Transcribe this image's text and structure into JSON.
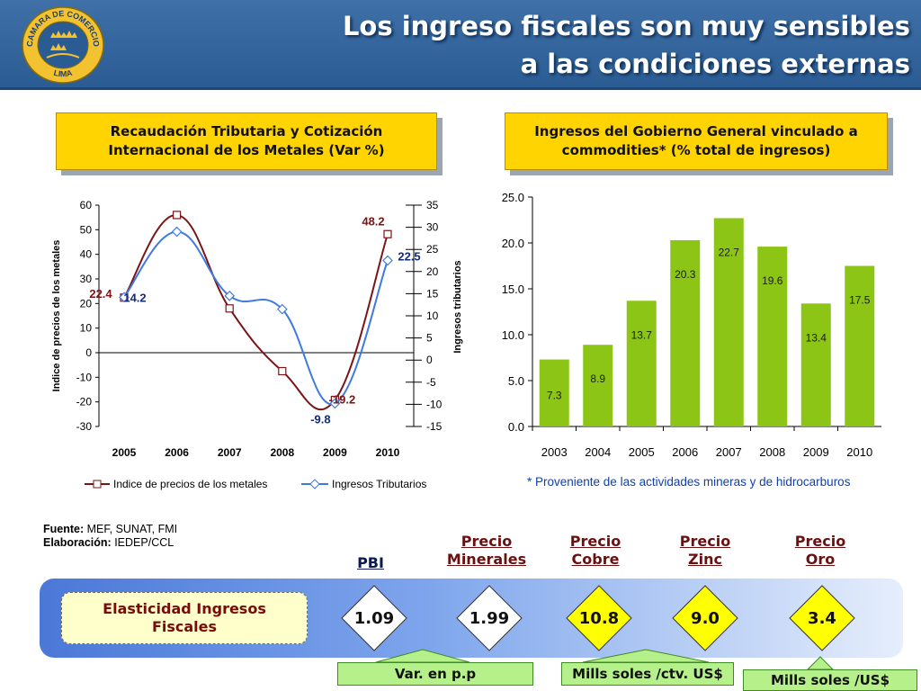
{
  "header": {
    "title_line1": "Los ingreso fiscales son muy sensibles",
    "title_line2": "a las condiciones externas",
    "logo": {
      "text_top": "CAMARA DE COMERCIO",
      "text_bottom": "LIMA",
      "icon": "three-crowns-seal-icon"
    }
  },
  "left_panel": {
    "title_line1": "Recaudación Tributaria y Cotización",
    "title_line2": "Internacional de los Metales (Var %)"
  },
  "right_panel": {
    "title_line1": "Ingresos del Gobierno General vinculado a",
    "title_line2": "commodities* (% total de ingresos)"
  },
  "chart_data": [
    {
      "type": "line",
      "x": [
        "2005",
        "2006",
        "2007",
        "2008",
        "2009",
        "2010"
      ],
      "series": [
        {
          "name": "Indice de precios de los metales",
          "axis": "left",
          "color": "#7b1515",
          "values": [
            22.4,
            56,
            18,
            -7.5,
            -19.2,
            48.2
          ]
        },
        {
          "name": "Ingresos Tributarios",
          "axis": "right",
          "color": "#3d7be0",
          "values": [
            14.2,
            29,
            14.5,
            11.5,
            -9.8,
            22.5
          ]
        }
      ],
      "ylabel": "Indice de precios de los metales",
      "y2label": "Ingresos tributarios",
      "ylim": [
        -30,
        60
      ],
      "yticks": [
        -30,
        -20,
        -10,
        0,
        10,
        20,
        30,
        40,
        50,
        60
      ],
      "y2lim": [
        -15,
        35
      ],
      "y2ticks": [
        -15,
        -10,
        -5,
        0,
        5,
        10,
        15,
        20,
        25,
        30,
        35
      ],
      "annotations": [
        {
          "text": "22.4",
          "series": 0,
          "index": 0
        },
        {
          "text": "48.2",
          "series": 0,
          "index": 5
        },
        {
          "text": "-19.2",
          "series": 0,
          "index": 4
        },
        {
          "text": "14.2",
          "series": 1,
          "index": 0
        },
        {
          "text": "22.5",
          "series": 1,
          "index": 5
        },
        {
          "text": "-9.8",
          "series": 1,
          "index": 4
        }
      ],
      "legend": "bottom",
      "grid": false
    },
    {
      "type": "bar",
      "categories": [
        "2003",
        "2004",
        "2005",
        "2006",
        "2007",
        "2008",
        "2009",
        "2010"
      ],
      "values": [
        7.3,
        8.9,
        13.7,
        20.3,
        22.7,
        19.6,
        13.4,
        17.5
      ],
      "labels": [
        "7.3",
        "8.9",
        "13.7",
        "20.3",
        "22.7",
        "19.6",
        "13.4",
        "17.5"
      ],
      "ylim": [
        0,
        25
      ],
      "yticks": [
        "0.0",
        "5.0",
        "10.0",
        "15.0",
        "20.0",
        "25.0"
      ],
      "color": "#8cc516",
      "grid": false
    }
  ],
  "note": "* Proveniente de las actividades mineras y de hidrocarburos",
  "source": {
    "fuente_label": "Fuente:",
    "fuente_value": "MEF, SUNAT, FMI",
    "elab_label": "Elaboración:",
    "elab_value": "IEDEP/CCL"
  },
  "elasticity": {
    "label": "Elasticidad Ingresos Fiscales",
    "columns": [
      {
        "head": "PBI",
        "value": "1.09",
        "color": "#ffffff"
      },
      {
        "head": "Precio Minerales",
        "value": "1.99",
        "color": "#ffffff"
      },
      {
        "head": "Precio Cobre",
        "value": "10.8",
        "color": "#ffff00"
      },
      {
        "head": "Precio Zinc",
        "value": "9.0",
        "color": "#ffff00"
      },
      {
        "head": "Precio Oro",
        "value": "3.4",
        "color": "#ffff00"
      }
    ],
    "units": [
      "Var. en p.p",
      "Mills soles /ctv. US$",
      "Mills soles /US$"
    ]
  }
}
